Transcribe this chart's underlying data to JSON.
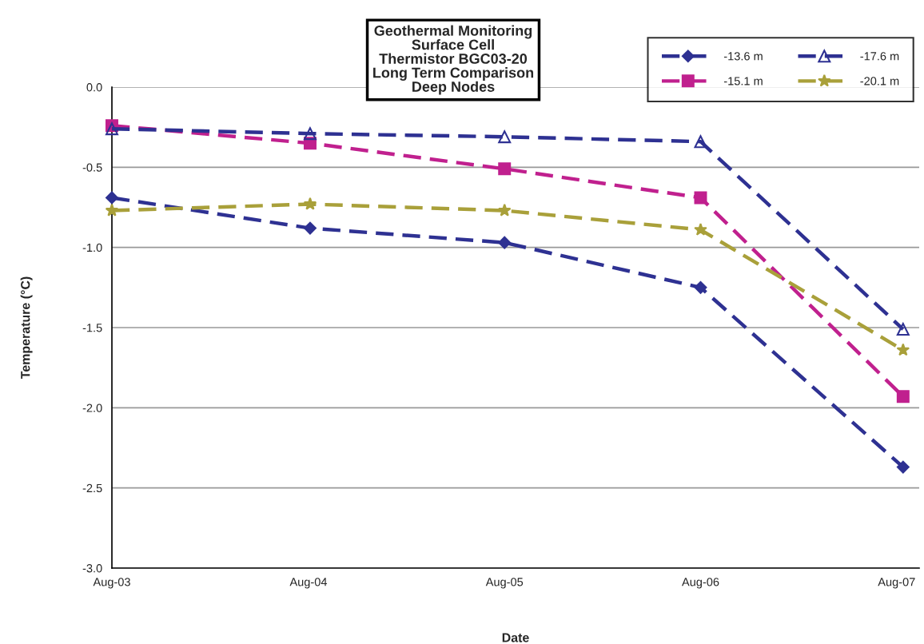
{
  "chart_data": {
    "type": "line",
    "title": "Geothermal Monitoring\nSurface Cell\nThermistor BGC03-20\nLong Term Comparison\nDeep Nodes",
    "xlabel": "Date",
    "ylabel": "Temperature (°C)",
    "x": [
      "2003-08-01",
      "2004-08-04",
      "2005-08-01",
      "2006-08-01",
      "2007-08-13"
    ],
    "series": [
      {
        "name": "-13.6 m",
        "color": "#2e3192",
        "marker": "diamond",
        "values": [
          -0.69,
          -0.88,
          -0.97,
          -1.25,
          -2.37
        ]
      },
      {
        "name": "-15.1 m",
        "color": "#c0208e",
        "marker": "square",
        "values": [
          -0.24,
          -0.35,
          -0.51,
          -0.69,
          -1.93
        ]
      },
      {
        "name": "-17.6 m",
        "color": "#2e3192",
        "marker": "triangle",
        "values": [
          -0.26,
          -0.29,
          -0.31,
          -0.34,
          -1.51
        ]
      },
      {
        "name": "-20.1 m",
        "color": "#a9a03a",
        "marker": "star",
        "values": [
          -0.77,
          -0.73,
          -0.77,
          -0.89,
          -1.64
        ]
      }
    ],
    "line_style": "dashed",
    "xlim": [
      "2003-08-01",
      "2007-09-12"
    ],
    "xticks": [
      {
        "value": "2003-08-01",
        "label": "Aug-03"
      },
      {
        "value": "2004-08-01",
        "label": "Aug-04"
      },
      {
        "value": "2005-08-01",
        "label": "Aug-05"
      },
      {
        "value": "2006-08-01",
        "label": "Aug-06"
      },
      {
        "value": "2007-08-01",
        "label": "Aug-07"
      }
    ],
    "ylim": [
      -3.0,
      0.0
    ],
    "yticks": [
      {
        "value": -3.0,
        "label": "-3.0"
      },
      {
        "value": -2.5,
        "label": "-2.5"
      },
      {
        "value": -2.0,
        "label": "-2.0"
      },
      {
        "value": -1.5,
        "label": "-1.5"
      },
      {
        "value": -1.0,
        "label": "-1.0"
      },
      {
        "value": -0.5,
        "label": "-0.5"
      },
      {
        "value": 0.0,
        "label": "0.0"
      }
    ],
    "grid": "y",
    "legend": "top right"
  }
}
